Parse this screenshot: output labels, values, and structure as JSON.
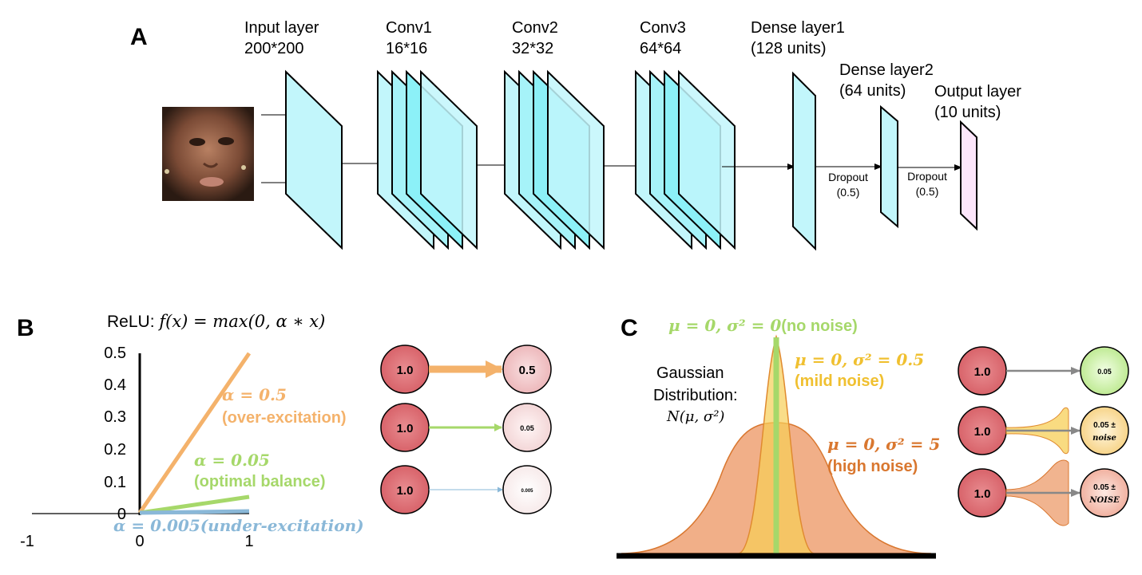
{
  "panel_a": {
    "letter": "A",
    "layers": [
      {
        "line1": "Input layer",
        "line2": "200*200"
      },
      {
        "line1": "Conv1",
        "line2": "16*16"
      },
      {
        "line1": "Conv2",
        "line2": "32*32"
      },
      {
        "line1": "Conv3",
        "line2": "64*64"
      },
      {
        "line1": "Dense layer1",
        "line2": "(128 units)"
      },
      {
        "line1": "Dense layer2",
        "line2": "(64 units)"
      },
      {
        "line1": "Output layer",
        "line2": "(10 units)"
      }
    ],
    "dropouts": [
      {
        "label": "Dropout",
        "value": "(0.5)"
      },
      {
        "label": "Dropout",
        "value": "(0.5)"
      }
    ],
    "colors": {
      "layer": "#c2f6fb",
      "layer_deep": "#6ff0f8",
      "output": "#fde6fb"
    }
  },
  "panel_b": {
    "letter": "B",
    "title_prefix": "ReLU: ",
    "title_formula": "f(x) = max(0, α ∗ x)",
    "y_ticks": [
      "0.5",
      "0.4",
      "0.3",
      "0.2",
      "0.1",
      "0"
    ],
    "x_ticks": [
      "-1",
      "0",
      "1"
    ],
    "series": [
      {
        "name": "α = 0.5",
        "desc": "(over-excitation)",
        "alpha": 0.5,
        "color": "#f4b26b"
      },
      {
        "name": "α = 0.05",
        "desc": "(optimal balance)",
        "alpha": 0.05,
        "color": "#a6d86a"
      },
      {
        "name": "α = 0.005(under-excitation)",
        "desc": "",
        "alpha": 0.005,
        "color": "#8ab8d8"
      }
    ],
    "node_rows": [
      {
        "input": "1.0",
        "output": "0.5"
      },
      {
        "input": "1.0",
        "output": "0.05"
      },
      {
        "input": "1.0",
        "output": "0.005"
      }
    ]
  },
  "panel_c": {
    "letter": "C",
    "dist_label_1": "Gaussian",
    "dist_label_2": "Distribution:",
    "dist_formula": "N(μ, σ²)",
    "curves": [
      {
        "formula": "μ = 0, σ² = 0",
        "desc": "(no noise)",
        "color": "#a6d86a"
      },
      {
        "formula": "μ = 0, σ² = 0.5",
        "desc": "(mild noise)",
        "color": "#f0c030"
      },
      {
        "formula": "μ = 0, σ² = 5",
        "desc": "(high noise)",
        "color": "#d9772f"
      }
    ],
    "node_rows": [
      {
        "input": "1.0",
        "output": "0.05",
        "noise": ""
      },
      {
        "input": "1.0",
        "output": "0.05 ±",
        "noise": "noise"
      },
      {
        "input": "1.0",
        "output": "0.05 ±",
        "noise": "NOISE"
      }
    ]
  }
}
